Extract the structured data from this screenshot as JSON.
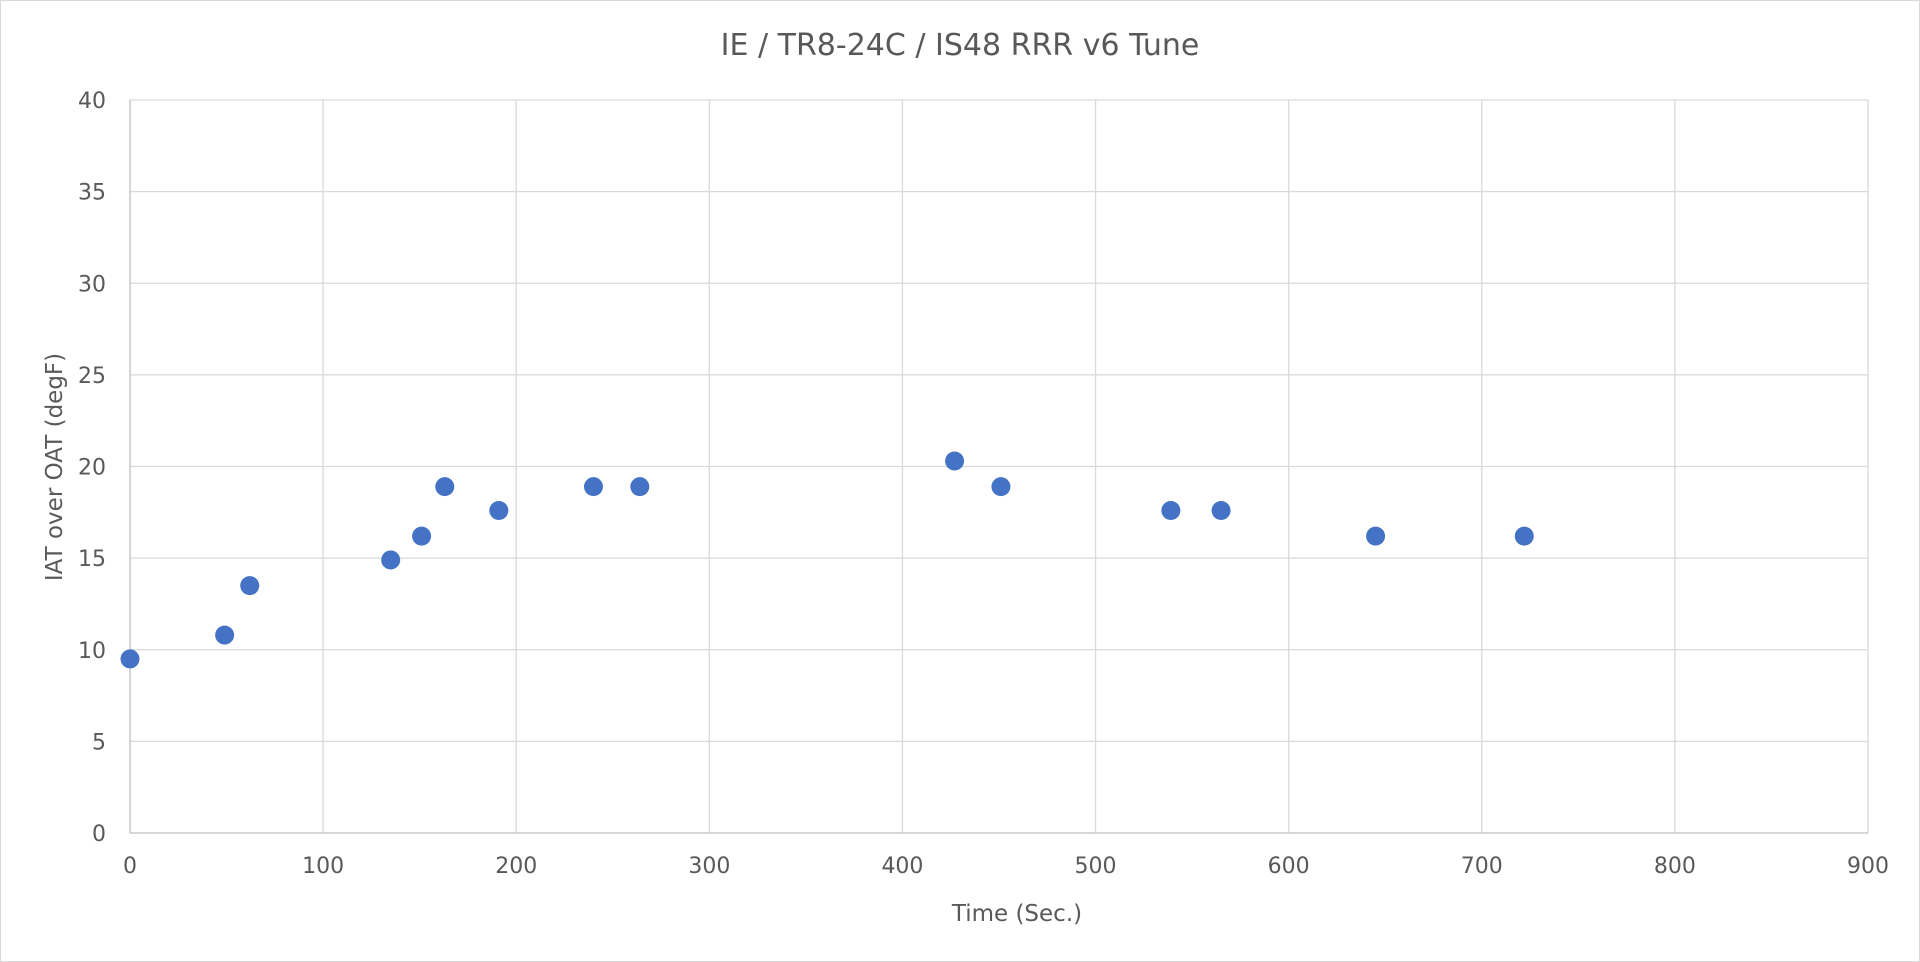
{
  "chart_data": {
    "type": "scatter",
    "title": "IE / TR8-24C / IS48 RRR v6 Tune",
    "xlabel": "Time (Sec.)",
    "ylabel": "IAT over OAT (degF)",
    "xlim": [
      0,
      900
    ],
    "ylim": [
      0,
      40
    ],
    "x_ticks": [
      0,
      100,
      200,
      300,
      400,
      500,
      600,
      700,
      800,
      900
    ],
    "y_ticks": [
      0,
      5,
      10,
      15,
      20,
      25,
      30,
      35,
      40
    ],
    "grid": true,
    "legend": "none",
    "series": [
      {
        "color": "#4472c4",
        "points": [
          {
            "x": 0,
            "y": 9.5
          },
          {
            "x": 49,
            "y": 10.8
          },
          {
            "x": 62,
            "y": 13.5
          },
          {
            "x": 135,
            "y": 14.9
          },
          {
            "x": 151,
            "y": 16.2
          },
          {
            "x": 163,
            "y": 18.9
          },
          {
            "x": 191,
            "y": 17.6
          },
          {
            "x": 240,
            "y": 18.9
          },
          {
            "x": 264,
            "y": 18.9
          },
          {
            "x": 427,
            "y": 20.3
          },
          {
            "x": 451,
            "y": 18.9
          },
          {
            "x": 539,
            "y": 17.6
          },
          {
            "x": 565,
            "y": 17.6
          },
          {
            "x": 645,
            "y": 16.2
          },
          {
            "x": 722,
            "y": 16.2
          }
        ]
      }
    ]
  }
}
